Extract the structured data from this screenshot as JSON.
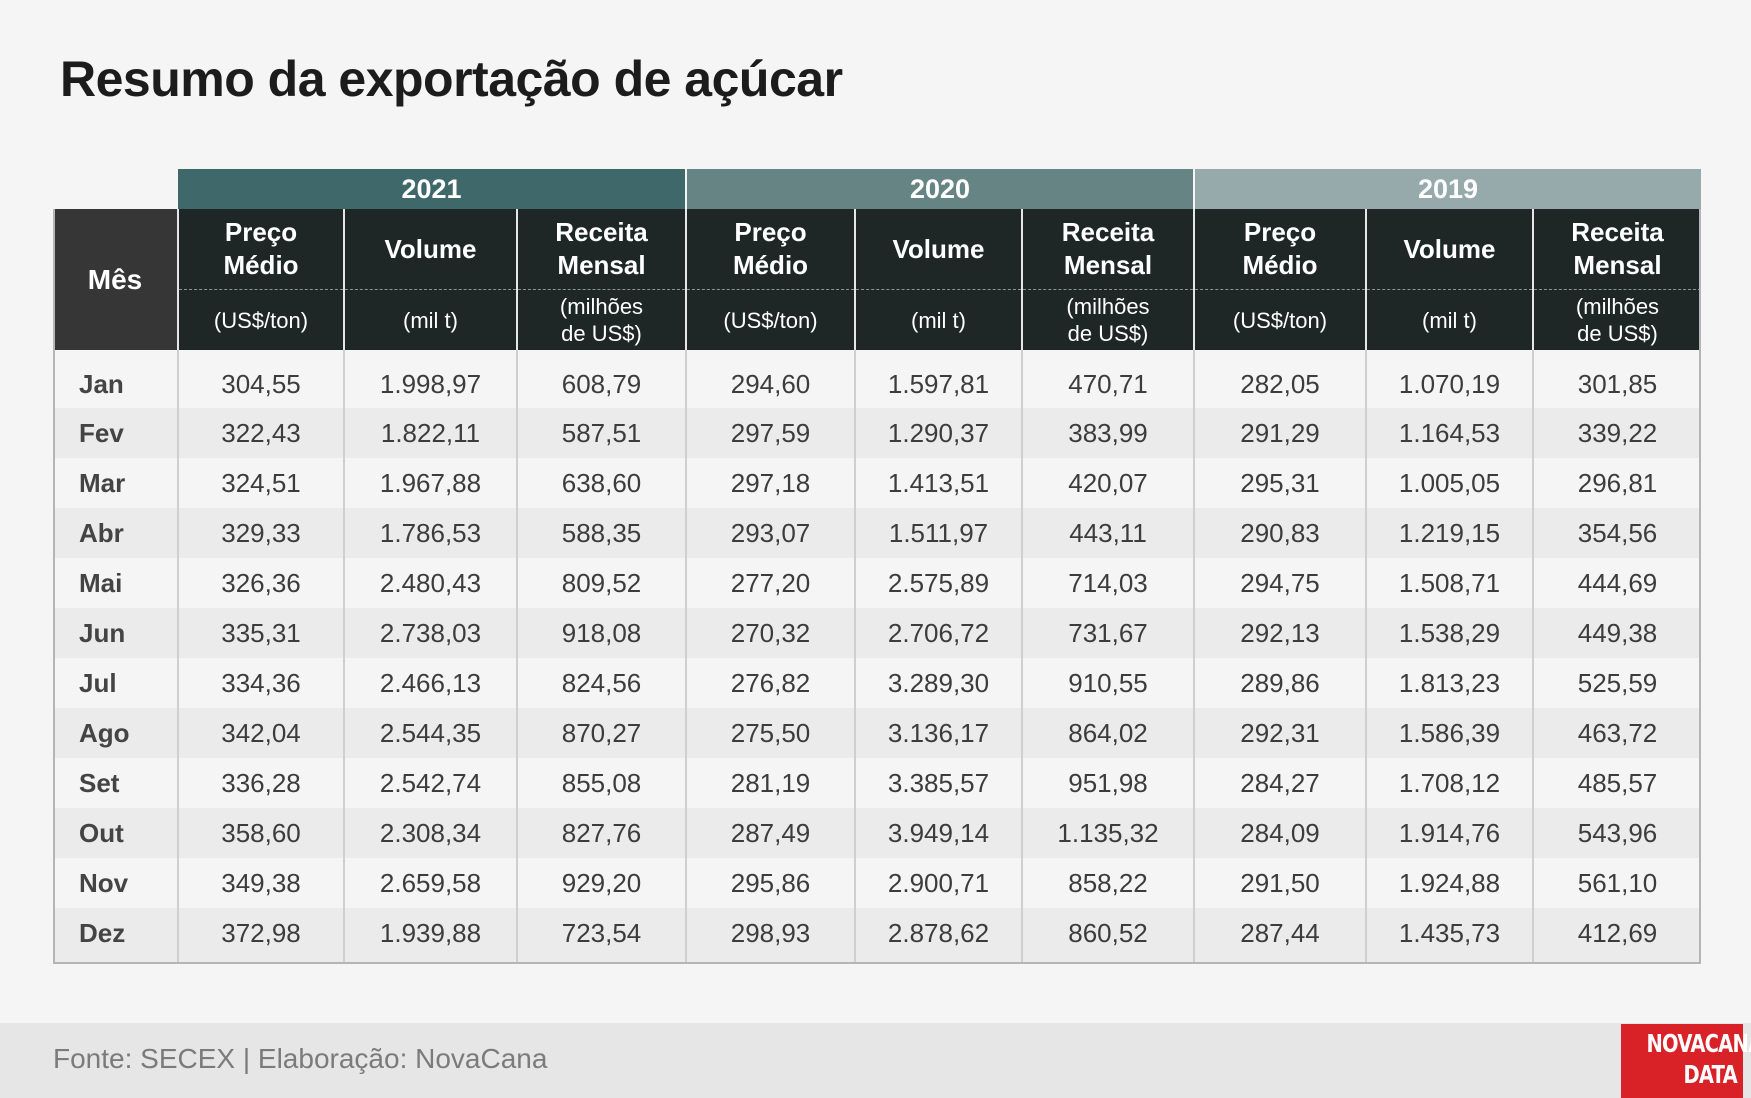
{
  "title": "Resumo da exportação de açúcar",
  "chart_data": {
    "type": "table",
    "title": "Resumo da exportação de açúcar",
    "years": [
      "2021",
      "2020",
      "2019"
    ],
    "month_header": "Mês",
    "columns": [
      {
        "label_line1": "Preço",
        "label_line2": "Médio",
        "unit_line1": "(US$/ton)",
        "unit_line2": ""
      },
      {
        "label_line1": "Volume",
        "label_line2": "",
        "unit_line1": "(mil t)",
        "unit_line2": ""
      },
      {
        "label_line1": "Receita",
        "label_line2": "Mensal",
        "unit_line1": "(milhões",
        "unit_line2": "de US$)"
      }
    ],
    "rows": [
      {
        "month": "Jan",
        "values": [
          "304,55",
          "1.998,97",
          "608,79",
          "294,60",
          "1.597,81",
          "470,71",
          "282,05",
          "1.070,19",
          "301,85"
        ]
      },
      {
        "month": "Fev",
        "values": [
          "322,43",
          "1.822,11",
          "587,51",
          "297,59",
          "1.290,37",
          "383,99",
          "291,29",
          "1.164,53",
          "339,22"
        ]
      },
      {
        "month": "Mar",
        "values": [
          "324,51",
          "1.967,88",
          "638,60",
          "297,18",
          "1.413,51",
          "420,07",
          "295,31",
          "1.005,05",
          "296,81"
        ]
      },
      {
        "month": "Abr",
        "values": [
          "329,33",
          "1.786,53",
          "588,35",
          "293,07",
          "1.511,97",
          "443,11",
          "290,83",
          "1.219,15",
          "354,56"
        ]
      },
      {
        "month": "Mai",
        "values": [
          "326,36",
          "2.480,43",
          "809,52",
          "277,20",
          "2.575,89",
          "714,03",
          "294,75",
          "1.508,71",
          "444,69"
        ]
      },
      {
        "month": "Jun",
        "values": [
          "335,31",
          "2.738,03",
          "918,08",
          "270,32",
          "2.706,72",
          "731,67",
          "292,13",
          "1.538,29",
          "449,38"
        ]
      },
      {
        "month": "Jul",
        "values": [
          "334,36",
          "2.466,13",
          "824,56",
          "276,82",
          "3.289,30",
          "910,55",
          "289,86",
          "1.813,23",
          "525,59"
        ]
      },
      {
        "month": "Ago",
        "values": [
          "342,04",
          "2.544,35",
          "870,27",
          "275,50",
          "3.136,17",
          "864,02",
          "292,31",
          "1.586,39",
          "463,72"
        ]
      },
      {
        "month": "Set",
        "values": [
          "336,28",
          "2.542,74",
          "855,08",
          "281,19",
          "3.385,57",
          "951,98",
          "284,27",
          "1.708,12",
          "485,57"
        ]
      },
      {
        "month": "Out",
        "values": [
          "358,60",
          "2.308,34",
          "827,76",
          "287,49",
          "3.949,14",
          "1.135,32",
          "284,09",
          "1.914,76",
          "543,96"
        ]
      },
      {
        "month": "Nov",
        "values": [
          "349,38",
          "2.659,58",
          "929,20",
          "295,86",
          "2.900,71",
          "858,22",
          "291,50",
          "1.924,88",
          "561,10"
        ]
      },
      {
        "month": "Dez",
        "values": [
          "372,98",
          "1.939,88",
          "723,54",
          "298,93",
          "2.878,62",
          "860,52",
          "287,44",
          "1.435,73",
          "412,69"
        ]
      }
    ],
    "colors": {
      "year_2021": "#3e6869",
      "year_2020": "#678484",
      "year_2019": "#97aaab",
      "header": "#1e2626",
      "month_header": "#363636"
    }
  },
  "footer": {
    "source": "Fonte: SECEX | Elaboração: NovaCana"
  },
  "logo": {
    "line1": "NOVACANA",
    "line2": "DATA",
    "color": "#d92128"
  }
}
